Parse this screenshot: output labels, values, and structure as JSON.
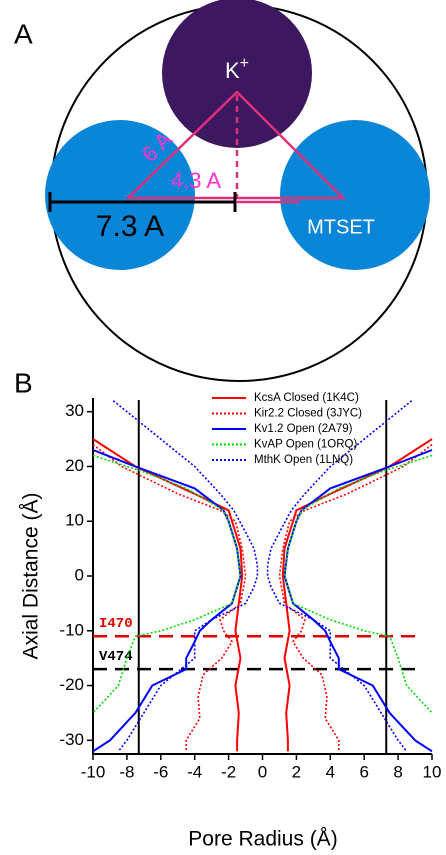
{
  "panel_a": {
    "label": "A",
    "ion": "K",
    "charge": "+",
    "side_label": "6 A",
    "height_label": "4.3 A",
    "radius_label": "7.3 A",
    "reagent": "MTSET"
  },
  "chart_data": {
    "type": "line",
    "panel_label": "B",
    "xlabel": "Pore Radius (Å)",
    "ylabel": "Axial Distance (Å)",
    "mirrored": true,
    "xlim": [
      -10,
      10
    ],
    "xticks": [
      -10,
      -8,
      -6,
      -4,
      -2,
      0,
      2,
      4,
      6,
      8,
      10
    ],
    "ylim": [
      -32.5,
      32.5
    ],
    "yticks": [
      30,
      20,
      10,
      0,
      -10,
      -20,
      -30
    ],
    "vlines": [
      -7.3,
      7.3
    ],
    "hlines": [
      {
        "value": -11,
        "label": "I470",
        "color": "#e00000"
      },
      {
        "value": -17,
        "label": "V474",
        "color": "#000000"
      }
    ],
    "series": [
      {
        "name": "KcsA Closed (1K4C)",
        "color": "#ff0000",
        "dash": false,
        "y": [
          25,
          20,
          15,
          12,
          10,
          5,
          0,
          -5,
          -10,
          -15,
          -20,
          -25,
          -30,
          -32
        ],
        "values": [
          10,
          7.5,
          4,
          2,
          1.8,
          1.3,
          1.2,
          1.4,
          1.6,
          1.3,
          1.6,
          1.4,
          1.5,
          1.5
        ]
      },
      {
        "name": "Kir2.2 Closed (3JYC)",
        "color": "#ff0000",
        "dash": true,
        "y": [
          24,
          20,
          15,
          12,
          10,
          5,
          0,
          -5,
          -8,
          -10,
          -12,
          -15,
          -18,
          -22,
          -26,
          -30,
          -32
        ],
        "values": [
          10,
          8.3,
          5,
          2.5,
          1.6,
          1.2,
          1,
          1.3,
          2.5,
          2.3,
          1.8,
          2.4,
          3.5,
          3.8,
          3.7,
          4.5,
          4.5
        ]
      },
      {
        "name": "Kv1.2 Open (2A79)",
        "color": "#0000ff",
        "dash": false,
        "y": [
          23,
          20,
          16,
          12,
          10,
          5,
          0,
          -5,
          -8,
          -10,
          -12,
          -15,
          -17,
          -20,
          -25,
          -30,
          -32
        ],
        "values": [
          10,
          7.5,
          4,
          2.3,
          2,
          1.5,
          1.3,
          1.8,
          3,
          3.7,
          4,
          4.5,
          4.5,
          6.5,
          7.5,
          9,
          10
        ]
      },
      {
        "name": "KvAP Open (1ORQ)",
        "color": "#00dd00",
        "dash": true,
        "y": [
          22,
          19,
          16,
          12,
          10,
          5,
          0,
          -5,
          -8,
          -10,
          -11,
          -15,
          -20,
          -25
        ],
        "values": [
          10,
          7,
          4.5,
          2.3,
          2,
          1.5,
          1.3,
          1.8,
          4,
          6,
          7.5,
          8,
          8.5,
          10
        ]
      },
      {
        "name": "MthK Open (1LNQ)",
        "color": "#0000ff",
        "dash": true,
        "y": [
          32,
          25,
          20,
          15,
          12,
          8,
          5,
          2,
          0,
          -2,
          -5,
          -8,
          -10,
          -15,
          -20,
          -25,
          -30,
          -32
        ],
        "values": [
          8.8,
          6,
          4,
          2.5,
          1.7,
          1,
          0.5,
          0.3,
          0.3,
          0.5,
          1,
          3,
          4,
          4,
          6,
          7,
          8,
          8.5
        ]
      }
    ]
  }
}
